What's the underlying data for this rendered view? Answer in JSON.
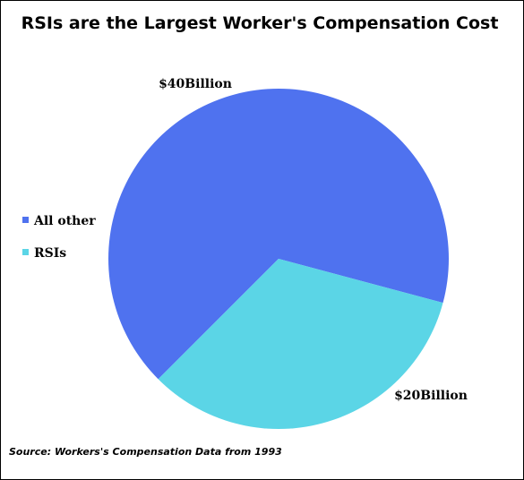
{
  "chart_data": {
    "type": "pie",
    "title": "RSIs are the Largest Worker's Compensation Cost",
    "categories": [
      "All other",
      "RSIs"
    ],
    "values": [
      40,
      20
    ],
    "value_labels": [
      "$40Billion",
      "$20Billion"
    ],
    "colors": [
      "#4f72ef",
      "#5bd5e6"
    ],
    "legend": "left",
    "source": "Source: Workers's Compensation Data from 1993"
  }
}
